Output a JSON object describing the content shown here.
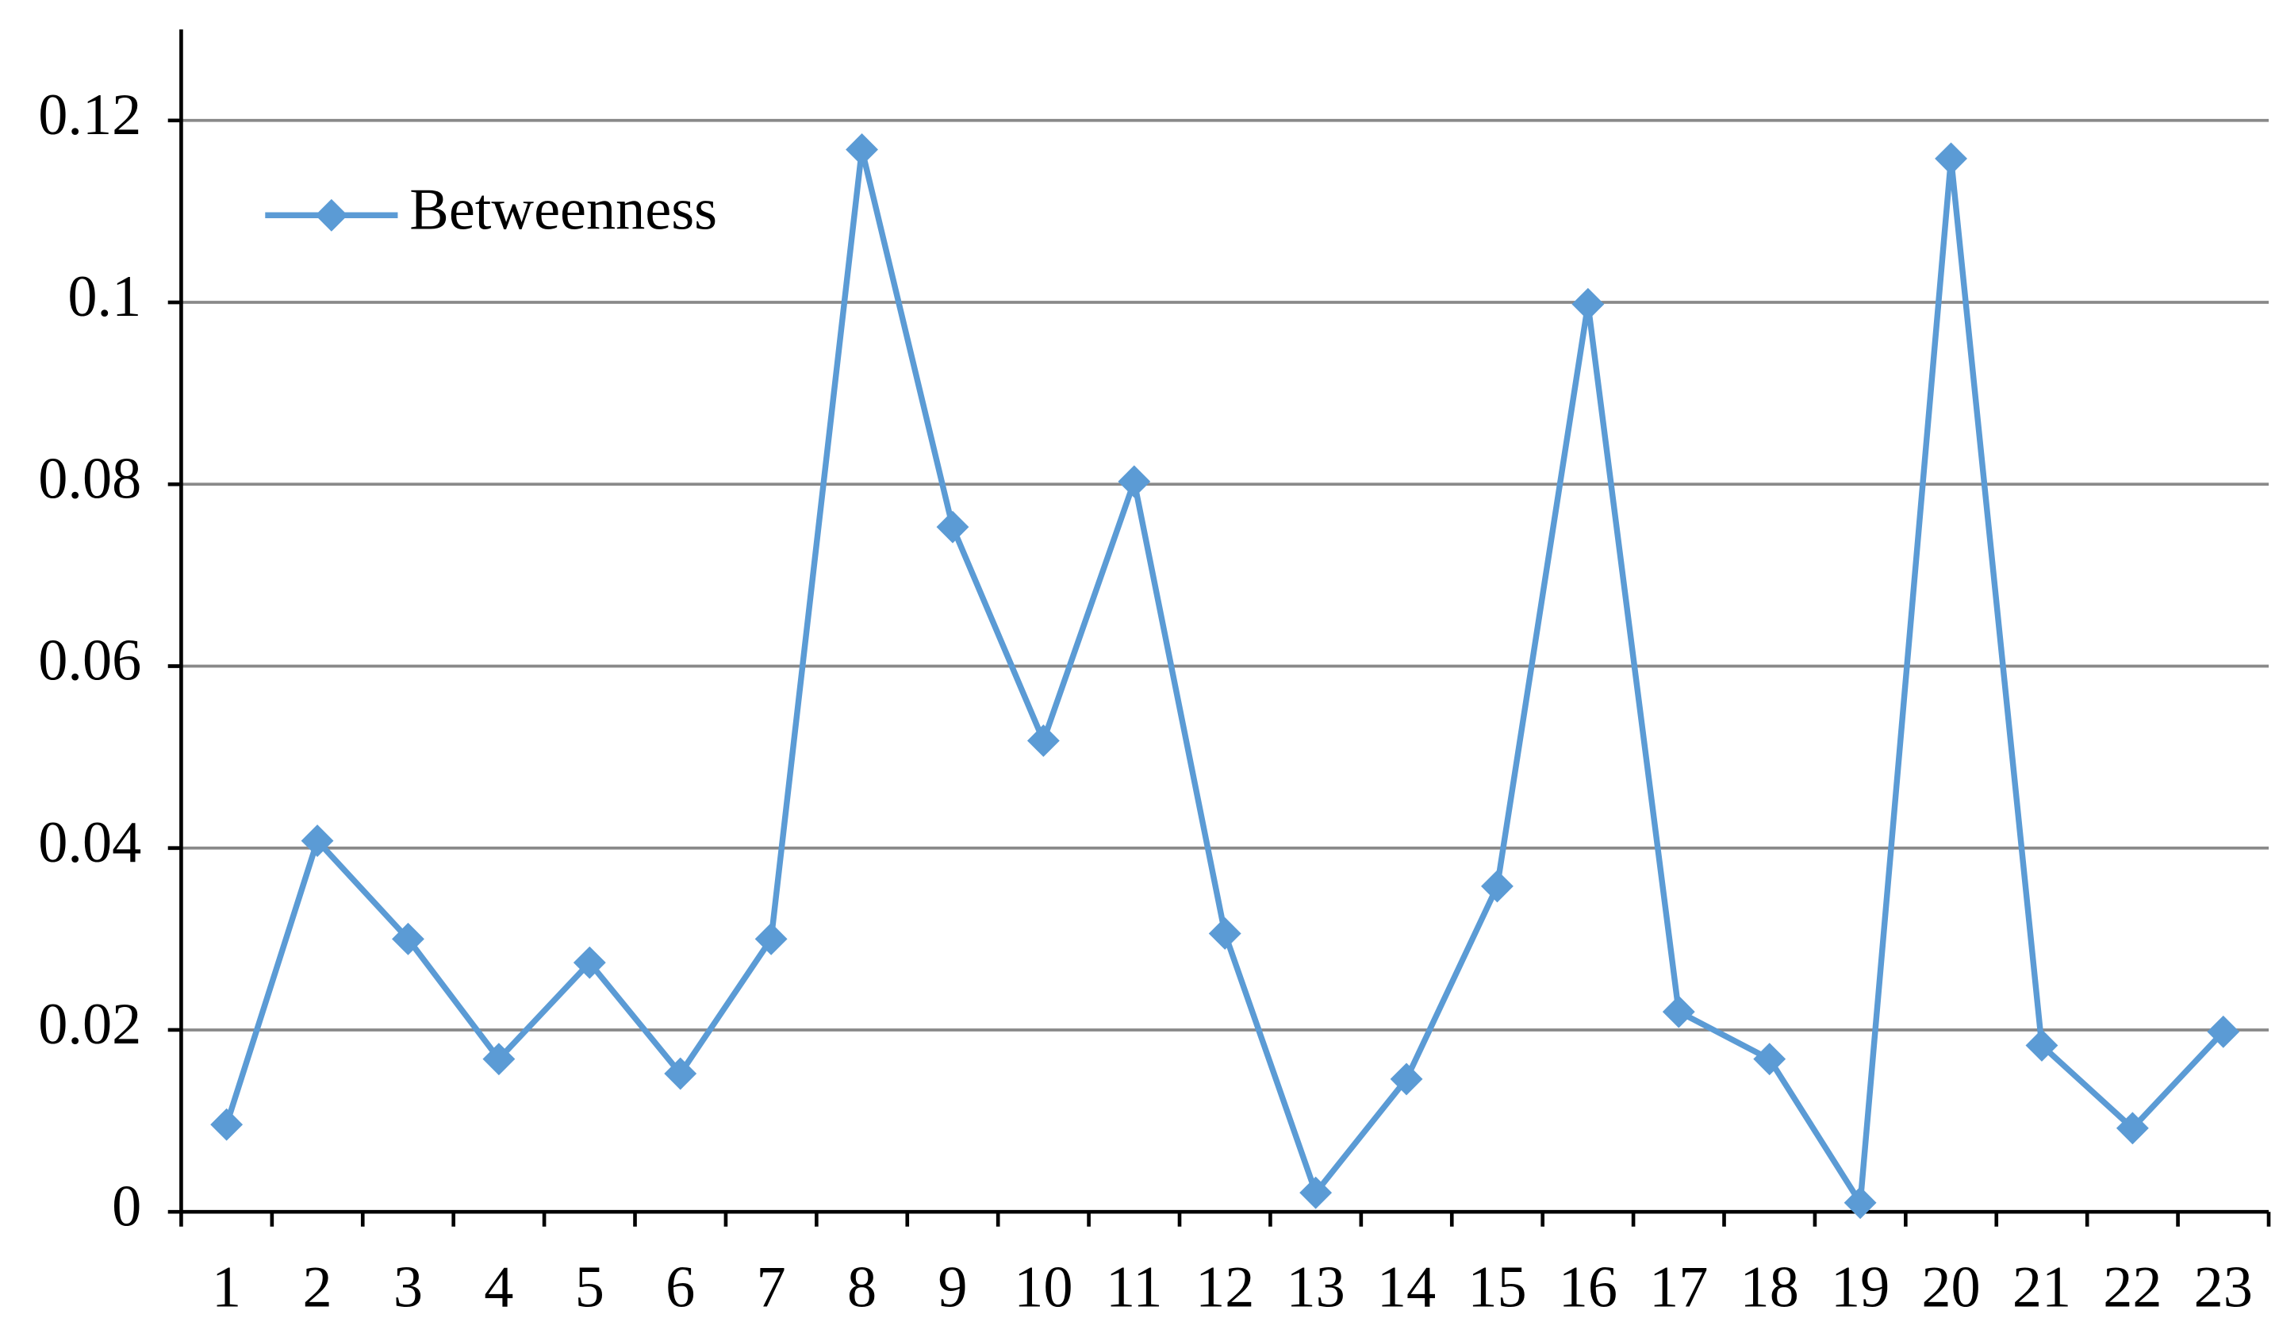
{
  "chart_data": {
    "type": "line",
    "categories": [
      "1",
      "2",
      "3",
      "4",
      "5",
      "6",
      "7",
      "8",
      "9",
      "10",
      "11",
      "12",
      "13",
      "14",
      "15",
      "16",
      "17",
      "18",
      "19",
      "20",
      "21",
      "22",
      "23"
    ],
    "series": [
      {
        "name": "Betweenness",
        "color": "#5b9bd5",
        "values": [
          0.0096,
          0.0408,
          0.03,
          0.0168,
          0.0274,
          0.0152,
          0.03,
          0.1168,
          0.0753,
          0.0518,
          0.0803,
          0.0306,
          0.0021,
          0.0146,
          0.0358,
          0.0998,
          0.022,
          0.0168,
          0.001,
          0.1158,
          0.0183,
          0.0092,
          0.0198
        ]
      }
    ],
    "ylim": [
      0,
      0.13
    ],
    "yticks": [
      0,
      0.02,
      0.04,
      0.06,
      0.08,
      0.1,
      0.12
    ],
    "grid": true,
    "legend": "upper left"
  }
}
